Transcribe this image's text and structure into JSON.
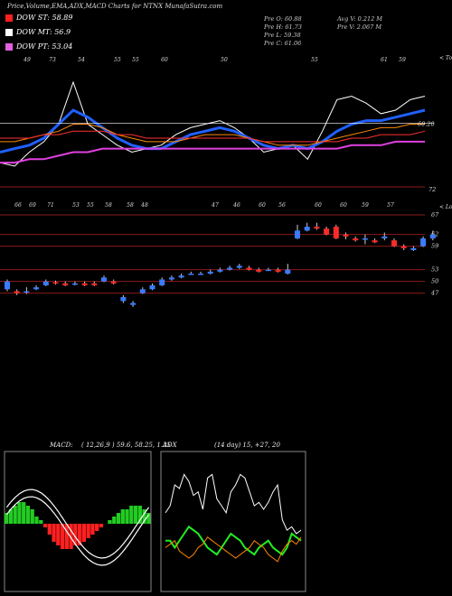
{
  "title": "Price,Volume,EMA,ADX,MACD Charts for NTNX  MunafaSutra.com",
  "legend": [
    {
      "label": "DOW ST: 58.89",
      "color": "#ff2020"
    },
    {
      "label": "DOW MT: 56.9",
      "color": "#ffffff"
    },
    {
      "label": "DOW PT: 53.04",
      "color": "#e060e0"
    }
  ],
  "stats": {
    "pre_o": "Pre   O: 60.88",
    "pre_h": "Pre   H: 61.73",
    "pre_l": "Pre   L: 59.38",
    "pre_c": "Pre   C: 61.06",
    "avg_v": "Avg V: 0.212  M",
    "pre_v": "Pre   V: 2.067  M"
  },
  "ema_panel": {
    "top_ticks": [
      "49",
      "73",
      "54",
      "55",
      "55",
      "60",
      "50",
      "55",
      "61",
      "59"
    ],
    "corner_label": "< Tops",
    "price_label": "60.20"
  },
  "mid_panel": {
    "top_ticks": [
      "66",
      "69",
      "71",
      "53",
      "55",
      "58",
      "58",
      "48",
      "47",
      "46",
      "60",
      "56",
      "60",
      "60",
      "59",
      "57"
    ],
    "corner_label": "< Lows",
    "right_label": "72"
  },
  "candle_panel": {
    "levels": [
      "67",
      "62",
      "59",
      "53",
      "50",
      "47"
    ]
  },
  "macd": {
    "header": "MACD:",
    "params": "( 12,26,9 ) 59.6,  58.25,  1.35"
  },
  "adx": {
    "header": "ADX",
    "params": "(14  day) 15,  +27,  20"
  },
  "chart_data": [
    {
      "type": "line",
      "name": "price-ema",
      "x": [
        0,
        1,
        2,
        3,
        4,
        5,
        6,
        7,
        8,
        9,
        10,
        11,
        12,
        13,
        14,
        15,
        16,
        17,
        18,
        19,
        20,
        21,
        22,
        23,
        24,
        25,
        26,
        27,
        28,
        29
      ],
      "series": [
        {
          "values": [
            49,
            48,
            52,
            55,
            60,
            72,
            60,
            57,
            54,
            52,
            53,
            54,
            57,
            59,
            60,
            61,
            59,
            56,
            52,
            53,
            54,
            50,
            58,
            67,
            68,
            66,
            63,
            64,
            67,
            68
          ]
        },
        {
          "values": [
            52,
            53,
            54,
            56,
            60,
            64,
            62,
            59,
            56,
            54,
            53,
            53,
            55,
            57,
            58,
            59,
            58,
            56,
            54,
            53,
            54,
            53,
            55,
            58,
            60,
            61,
            61,
            62,
            63,
            64
          ]
        },
        {
          "values": [
            55,
            55,
            56,
            57,
            58,
            60,
            60,
            59,
            57,
            56,
            55,
            55,
            55,
            56,
            57,
            57,
            57,
            56,
            55,
            54,
            54,
            54,
            55,
            56,
            57,
            58,
            59,
            59,
            60,
            60
          ]
        },
        {
          "values": [
            56,
            56,
            56,
            57,
            57,
            58,
            58,
            58,
            57,
            57,
            56,
            56,
            56,
            56,
            56,
            56,
            56,
            56,
            55,
            55,
            55,
            55,
            55,
            55,
            56,
            56,
            57,
            57,
            57,
            58
          ]
        },
        {
          "values": [
            49,
            49,
            50,
            50,
            51,
            52,
            52,
            53,
            53,
            53,
            53,
            53,
            53,
            53,
            53,
            53,
            53,
            53,
            53,
            53,
            53,
            53,
            53,
            53,
            54,
            54,
            54,
            55,
            55,
            55
          ]
        }
      ]
    },
    {
      "type": "candlestick",
      "name": "daily-candles",
      "x": [
        0,
        1,
        2,
        3,
        4,
        5,
        6,
        7,
        8,
        9,
        10,
        11,
        12,
        13,
        14,
        15,
        16,
        17,
        18,
        19,
        20,
        21,
        22,
        23,
        24,
        25,
        26,
        27,
        28,
        29,
        30,
        31,
        32,
        33,
        34,
        35,
        36,
        37,
        38,
        39,
        40,
        41,
        42,
        43,
        44
      ],
      "open": [
        48.0,
        47.5,
        47.5,
        48.0,
        49.0,
        49.8,
        49.5,
        49.5,
        49.5,
        49.5,
        50.0,
        50.0,
        45.0,
        44.0,
        47.0,
        48.0,
        49.0,
        50.5,
        51.0,
        52.0,
        52.0,
        52.0,
        52.5,
        53.0,
        53.5,
        53.5,
        53.0,
        53.0,
        53.0,
        52.0,
        61.0,
        63.0,
        64.0,
        63.5,
        64.0,
        62.0,
        61.0,
        61.0,
        60.5,
        61.0,
        60.5,
        59.0,
        58.0,
        59.0,
        61.0
      ],
      "close": [
        50.0,
        47.0,
        47.5,
        48.5,
        50.0,
        49.5,
        49.0,
        49.5,
        49.0,
        49.0,
        51.0,
        49.5,
        46.0,
        44.5,
        48.0,
        49.0,
        50.5,
        51.0,
        51.5,
        52.0,
        52.0,
        52.5,
        53.0,
        53.5,
        54.0,
        53.0,
        52.5,
        53.0,
        52.5,
        53.0,
        63.0,
        64.0,
        63.5,
        62.0,
        61.0,
        61.5,
        60.5,
        61.0,
        60.0,
        61.5,
        59.0,
        58.5,
        58.5,
        61.0,
        62.0
      ],
      "high": [
        50.5,
        48.0,
        48.5,
        49.0,
        50.5,
        50.2,
        50.0,
        50.0,
        50.0,
        50.0,
        51.5,
        50.5,
        46.5,
        45.0,
        48.5,
        49.5,
        51.0,
        51.5,
        52.0,
        52.5,
        52.5,
        53.0,
        53.5,
        54.0,
        54.5,
        54.0,
        53.5,
        53.5,
        53.5,
        54.5,
        64.5,
        65.0,
        65.0,
        64.0,
        64.5,
        62.5,
        61.5,
        62.0,
        61.0,
        62.5,
        61.0,
        59.5,
        59.0,
        61.5,
        63.0
      ],
      "low": [
        47.5,
        46.5,
        46.8,
        47.8,
        48.8,
        49.2,
        48.8,
        49.0,
        48.8,
        48.8,
        49.8,
        49.2,
        44.5,
        43.5,
        46.8,
        47.8,
        48.8,
        50.2,
        50.8,
        51.8,
        51.8,
        51.8,
        52.3,
        52.8,
        53.2,
        52.8,
        52.3,
        52.8,
        52.3,
        51.8,
        60.8,
        62.8,
        63.2,
        61.8,
        60.8,
        60.8,
        60.2,
        59.5,
        59.8,
        60.5,
        58.8,
        58.0,
        57.8,
        58.8,
        60.5
      ]
    },
    {
      "type": "bar",
      "name": "macd-histogram",
      "values": [
        3,
        4,
        5,
        6,
        6,
        5,
        4,
        2,
        1,
        -1,
        -3,
        -5,
        -6,
        -7,
        -7,
        -7,
        -6,
        -6,
        -5,
        -4,
        -3,
        -2,
        -1,
        0,
        1,
        2,
        3,
        4,
        4,
        5,
        5,
        5,
        4,
        3
      ]
    },
    {
      "type": "line",
      "name": "adx",
      "x": [
        0,
        1,
        2,
        3,
        4,
        5,
        6,
        7,
        8,
        9,
        10,
        11,
        12,
        13,
        14,
        15,
        16,
        17,
        18,
        19,
        20,
        21,
        22,
        23,
        24,
        25,
        26,
        27,
        28,
        29
      ],
      "series": [
        {
          "values": [
            20,
            22,
            28,
            27,
            31,
            29,
            25,
            26,
            21,
            30,
            31,
            24,
            22,
            20,
            26,
            28,
            31,
            30,
            26,
            22,
            23,
            21,
            23,
            26,
            28,
            18,
            15,
            16,
            14,
            15
          ]
        },
        {
          "values": [
            12,
            12,
            10,
            12,
            14,
            16,
            15,
            14,
            12,
            10,
            9,
            8,
            10,
            12,
            14,
            13,
            12,
            10,
            9,
            8,
            10,
            11,
            12,
            10,
            9,
            8,
            10,
            14,
            13,
            12
          ]
        },
        {
          "values": [
            10,
            11,
            12,
            9,
            8,
            7,
            8,
            10,
            11,
            13,
            12,
            11,
            10,
            9,
            8,
            7,
            8,
            9,
            10,
            12,
            11,
            10,
            8,
            7,
            6,
            9,
            11,
            12,
            11,
            13
          ]
        }
      ]
    }
  ]
}
